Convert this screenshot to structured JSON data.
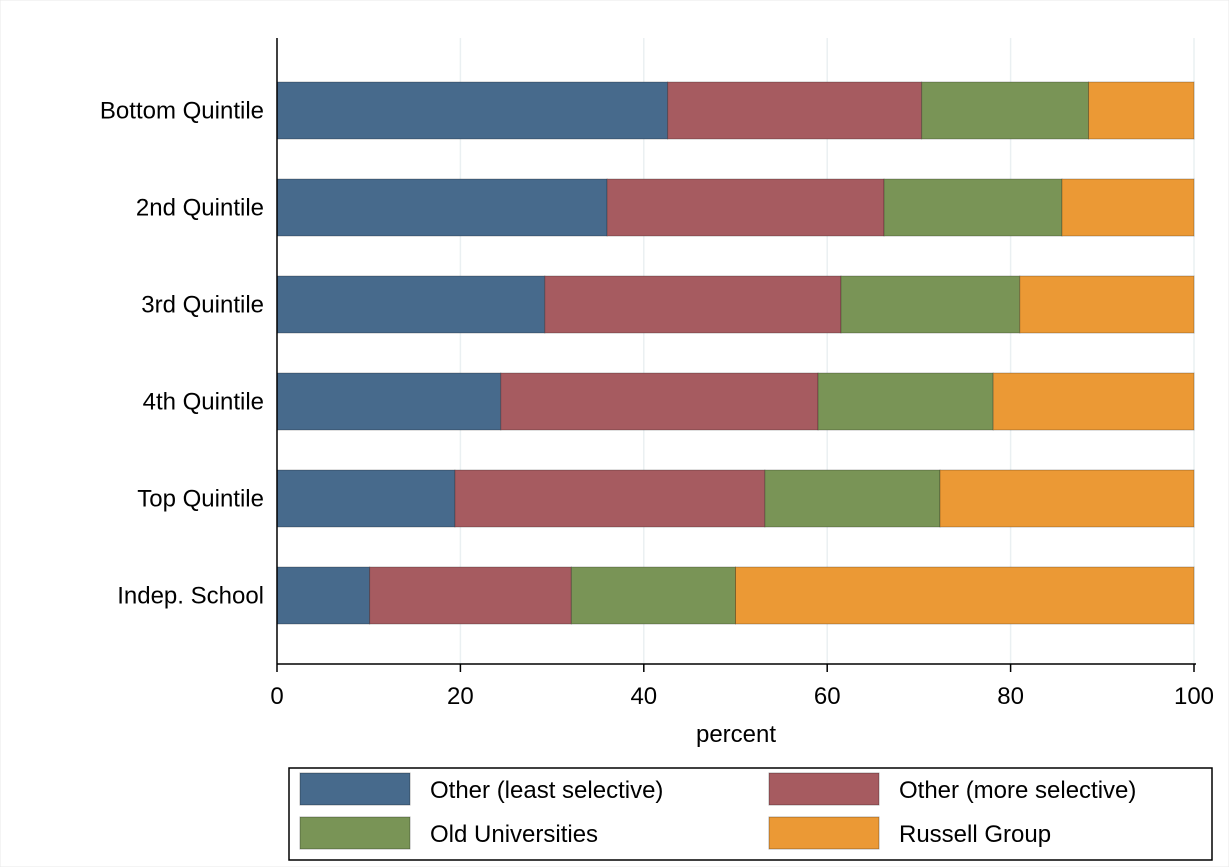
{
  "chart_data": {
    "type": "bar",
    "orientation": "horizontal",
    "stacked": true,
    "categories": [
      "Bottom Quintile",
      "2nd Quintile",
      "3rd Quintile",
      "4th Quintile",
      "Top Quintile",
      "Indep. School"
    ],
    "series": [
      {
        "name": "Other (least selective)",
        "color": "#476a8c",
        "values": [
          42.6,
          36.0,
          29.2,
          24.4,
          19.4,
          10.1
        ]
      },
      {
        "name": "Other (more selective)",
        "color": "#a65b60",
        "values": [
          27.7,
          30.2,
          32.3,
          34.6,
          33.8,
          22.0
        ]
      },
      {
        "name": "Old Universities",
        "color": "#799456",
        "values": [
          18.2,
          19.4,
          19.5,
          19.1,
          19.1,
          17.9
        ]
      },
      {
        "name": "Russell Group",
        "color": "#eb9935",
        "values": [
          11.5,
          14.4,
          19.0,
          21.9,
          27.7,
          50.0
        ]
      }
    ],
    "xlabel": "percent",
    "xlim": [
      0,
      100
    ],
    "xticks": [
      0,
      20,
      40,
      60,
      80,
      100
    ],
    "xtick_labels": [
      "0",
      "20",
      "40",
      "60",
      "80",
      "100"
    ],
    "grid": true,
    "legend_position": "bottom"
  }
}
